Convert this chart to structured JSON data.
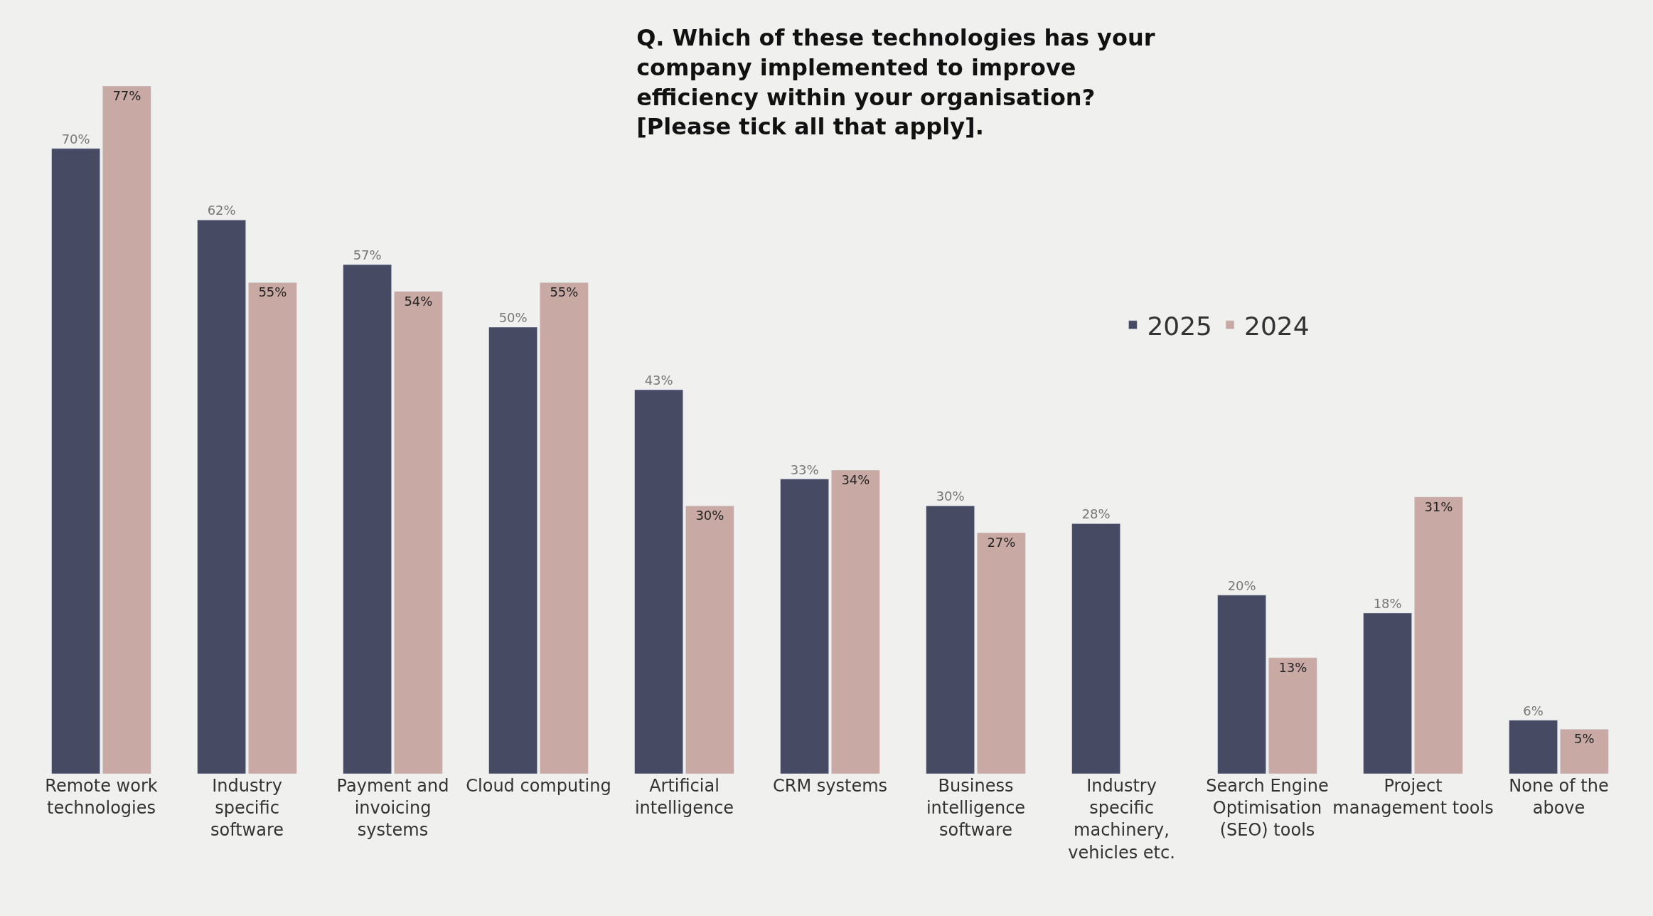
{
  "chart_data": {
    "type": "bar",
    "title": "Q. Which of these technologies has your company implemented to improve efficiency within your organisation? [Please tick all that apply].",
    "categories": [
      "Remote work technologies",
      "Industry specific software",
      "Payment and invoicing systems",
      "Cloud computing",
      "Artificial intelligence",
      "CRM systems",
      "Business intelligence software",
      "Industry specific machinery, vehicles etc.",
      "Search Engine Optimisation (SEO) tools",
      "Project management tools",
      "None of the above"
    ],
    "series": [
      {
        "name": "2025",
        "color": "#474a63",
        "values": [
          70,
          62,
          57,
          50,
          43,
          33,
          30,
          28,
          20,
          18,
          6
        ],
        "value_labels": [
          "70%",
          "62%",
          "57%",
          "50%",
          "43%",
          "33%",
          "30%",
          "28%",
          "20%",
          "18%",
          "6%"
        ]
      },
      {
        "name": "2024",
        "color": "#c9a9a3",
        "values": [
          77,
          55,
          54,
          55,
          30,
          34,
          27,
          null,
          13,
          31,
          5
        ],
        "value_labels": [
          "77%",
          "55%",
          "54%",
          "55%",
          "30%",
          "34%",
          "27%",
          null,
          "13%",
          "31%",
          "5%"
        ]
      }
    ],
    "legend": "right"
  }
}
